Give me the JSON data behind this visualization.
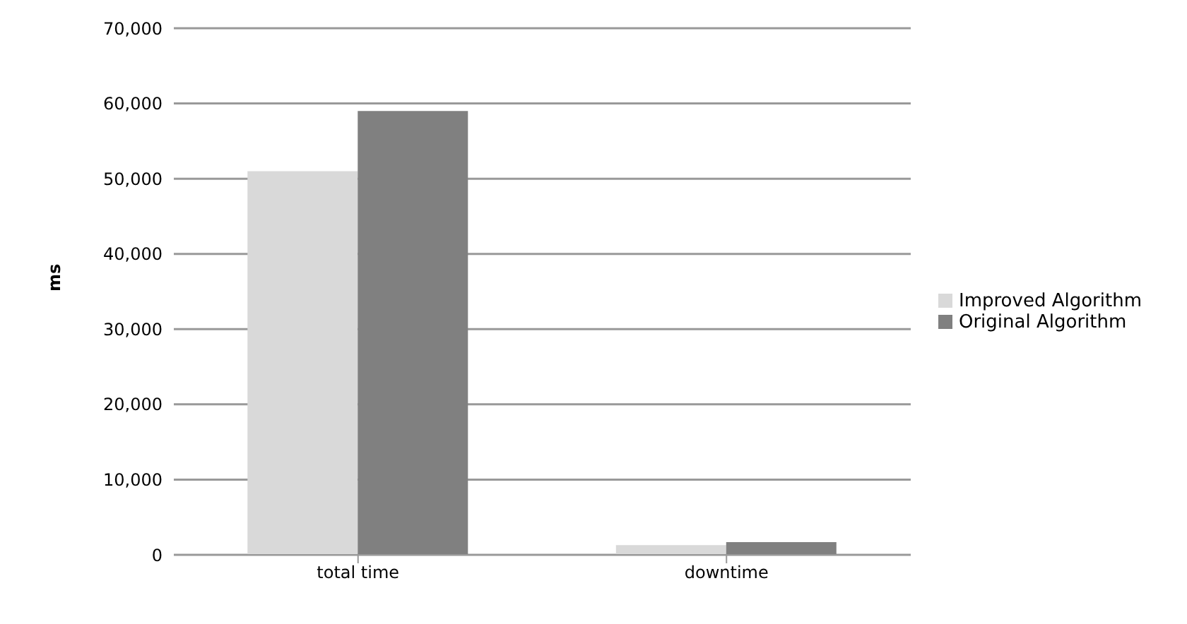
{
  "chart_data": {
    "type": "bar",
    "ylabel": "ms",
    "categories": [
      "total time",
      "downtime"
    ],
    "series": [
      {
        "name": "Improved Algorithm",
        "color": "#d9d9d9",
        "values": [
          51000,
          1300
        ]
      },
      {
        "name": "Original Algorithm",
        "color": "#808080",
        "values": [
          59000,
          1700
        ]
      }
    ],
    "ylim": [
      0,
      70000
    ],
    "yticks": [
      0,
      {
        "value": 10000,
        "label": "10,000"
      },
      {
        "value": 20000,
        "label": "20,000"
      },
      {
        "value": 30000,
        "label": "30,000"
      },
      {
        "value": 40000,
        "label": "40,000"
      },
      {
        "value": 50000,
        "label": "50,000"
      },
      {
        "value": 60000,
        "label": "60,000"
      },
      {
        "value": 70000,
        "label": "70,000"
      }
    ],
    "grid": "y",
    "legend": "right"
  }
}
